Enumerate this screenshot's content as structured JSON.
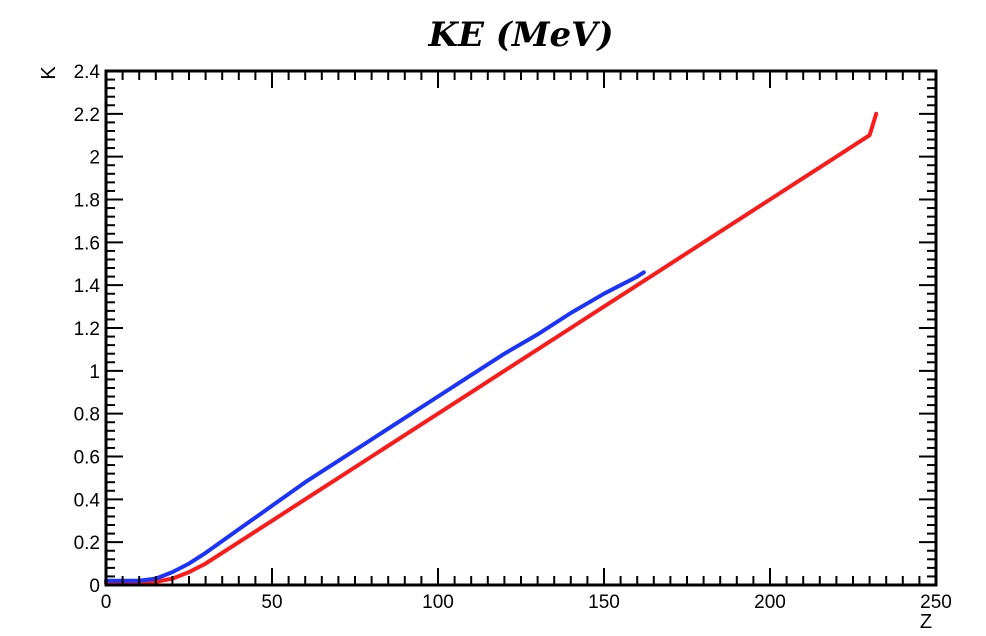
{
  "chart_data": {
    "type": "line",
    "title": "KE (MeV)",
    "xlabel": "Z",
    "ylabel": "K",
    "xlim": [
      0,
      250
    ],
    "ylim": [
      0,
      2.4
    ],
    "xticks": [
      0,
      50,
      100,
      150,
      200,
      250
    ],
    "xtick_labels": [
      "0",
      "50",
      "100",
      "150",
      "200",
      "250"
    ],
    "yticks": [
      0,
      0.2,
      0.4,
      0.6,
      0.8,
      1.0,
      1.2,
      1.4,
      1.6,
      1.8,
      2.0,
      2.2,
      2.4
    ],
    "ytick_labels": [
      "0",
      "0.2",
      "0.4",
      "0.6",
      "0.8",
      "1",
      "1.2",
      "1.4",
      "1.6",
      "1.8",
      "2",
      "2.2",
      "2.4"
    ],
    "grid": false,
    "legend": "none",
    "series": [
      {
        "color": "#ff1a1a",
        "x": [
          0,
          10,
          15,
          20,
          25,
          30,
          40,
          50,
          60,
          70,
          80,
          90,
          100,
          110,
          120,
          130,
          140,
          150,
          160,
          170,
          180,
          190,
          200,
          210,
          220,
          230,
          232
        ],
        "y": [
          0.01,
          0.01,
          0.015,
          0.03,
          0.06,
          0.1,
          0.2,
          0.3,
          0.4,
          0.5,
          0.6,
          0.7,
          0.8,
          0.9,
          1.0,
          1.1,
          1.2,
          1.3,
          1.4,
          1.5,
          1.6,
          1.7,
          1.8,
          1.9,
          2.0,
          2.1,
          2.2
        ]
      },
      {
        "color": "#1a33ff",
        "x": [
          0,
          10,
          15,
          20,
          25,
          30,
          40,
          50,
          60,
          70,
          80,
          90,
          100,
          110,
          120,
          130,
          140,
          150,
          160,
          162
        ],
        "y": [
          0.02,
          0.02,
          0.03,
          0.06,
          0.1,
          0.15,
          0.26,
          0.37,
          0.48,
          0.58,
          0.68,
          0.78,
          0.88,
          0.98,
          1.08,
          1.17,
          1.27,
          1.36,
          1.44,
          1.46
        ]
      }
    ]
  }
}
